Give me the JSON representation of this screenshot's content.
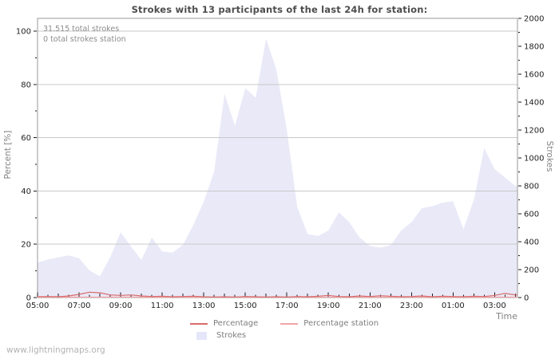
{
  "title": "Strokes with 13 participants of the last 24h for station:",
  "annotations": {
    "total_strokes": "31.515 total strokes",
    "total_strokes_station": "0 total strokes station"
  },
  "axis_labels": {
    "left": "Percent  [%]",
    "right": "Strokes",
    "x": "Time"
  },
  "legend": [
    {
      "label": "Percentage",
      "type": "line",
      "color": "#d96a6a"
    },
    {
      "label": "Percentage station",
      "type": "line",
      "color": "#f2a5a5"
    },
    {
      "label": "Strokes",
      "type": "patch",
      "color": "#e6e6fa"
    }
  ],
  "footer": {
    "link_text": "www.lightningmaps.org"
  },
  "colors": {
    "background": "#ffffff",
    "area_fill": "#e9e9f8",
    "grid": "#c9c9c9",
    "plot_border": "#999999",
    "tick": "#1a1a1a",
    "tick_label": "#222222",
    "percentage_line": "#d96a6a",
    "percentage_station_line": "#f2a5a5"
  },
  "chart_data": {
    "type": "area",
    "title": "Strokes with 13 participants of the last 24h for station:",
    "x_axis": {
      "label": "Time",
      "range_hours": [
        5,
        28.1
      ],
      "tick_hours": [
        5,
        7,
        9,
        11,
        13,
        15,
        17,
        19,
        21,
        23,
        25,
        27
      ],
      "tick_labels": [
        "05:00",
        "07:00",
        "09:00",
        "11:00",
        "13:00",
        "15:00",
        "17:00",
        "19:00",
        "21:00",
        "23:00",
        "01:00",
        "03:00"
      ],
      "minor_tick_interval_hours": 0.5
    },
    "left_axis": {
      "label": "Percent [%]",
      "min": 0,
      "max": 100,
      "tick_step": 20,
      "minor_step": 10
    },
    "right_axis": {
      "label": "Strokes",
      "min": 0,
      "max": 2000,
      "tick_step": 200,
      "minor_step": 100
    },
    "grid": "horizontal lines at left-axis major ticks",
    "legend_position": "bottom center",
    "x_hours": [
      5,
      5.5,
      6,
      6.5,
      7,
      7.5,
      8,
      8.5,
      9,
      9.5,
      10,
      10.5,
      11,
      11.5,
      12,
      12.5,
      13,
      13.5,
      14,
      14.5,
      15,
      15.5,
      16,
      16.5,
      17,
      17.5,
      18,
      18.5,
      19,
      19.5,
      20,
      20.5,
      21,
      21.5,
      22,
      22.5,
      23,
      23.5,
      24,
      24.5,
      25,
      25.5,
      26,
      26.5,
      27,
      27.5,
      28
    ],
    "series": [
      {
        "name": "Strokes",
        "type": "area",
        "axis": "right",
        "color": "#e9e9f8",
        "values": [
          250,
          272,
          288,
          302,
          282,
          195,
          152,
          290,
          468,
          365,
          270,
          430,
          330,
          322,
          378,
          520,
          686,
          900,
          1460,
          1230,
          1500,
          1430,
          1855,
          1630,
          1200,
          650,
          455,
          440,
          480,
          610,
          540,
          430,
          370,
          358,
          375,
          480,
          540,
          640,
          655,
          680,
          690,
          490,
          700,
          1070,
          920,
          860,
          800
        ]
      },
      {
        "name": "Percentage",
        "type": "line",
        "axis": "left",
        "color": "#d96a6a",
        "values": [
          0.3,
          0.4,
          0.3,
          0.6,
          1.2,
          2.0,
          1.8,
          1.0,
          0.8,
          1.0,
          0.6,
          0.4,
          0.5,
          0.3,
          0.4,
          0.5,
          0.3,
          0.2,
          0.3,
          0.2,
          0.4,
          0.3,
          0.2,
          0.3,
          0.2,
          0.4,
          0.3,
          0.5,
          0.8,
          0.4,
          0.3,
          0.6,
          0.4,
          0.7,
          0.5,
          0.3,
          0.4,
          0.6,
          0.3,
          0.5,
          0.4,
          0.3,
          0.5,
          0.4,
          0.8,
          1.6,
          1.0
        ]
      },
      {
        "name": "Percentage station",
        "type": "line",
        "axis": "left",
        "color": "#f2a5a5",
        "values": [
          0,
          0,
          0,
          0,
          0,
          0,
          0,
          0,
          0,
          0,
          0,
          0,
          0,
          0,
          0,
          0,
          0,
          0,
          0,
          0,
          0,
          0,
          0,
          0,
          0,
          0,
          0,
          0,
          0,
          0,
          0,
          0,
          0,
          0,
          0,
          0,
          0,
          0,
          0,
          0,
          0,
          0,
          0,
          0,
          0,
          0,
          0
        ]
      }
    ]
  }
}
